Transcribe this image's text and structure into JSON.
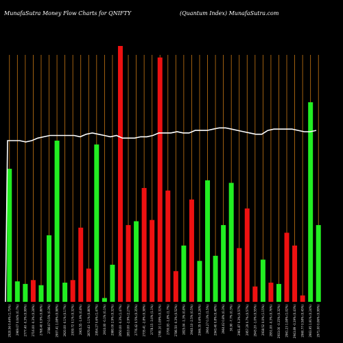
{
  "chart_data": {
    "type": "bar",
    "title_left": "MunafaSutra  Money Flow  Charts for QNIFTY",
    "title_right": "(Quantum Index) MunafaSutra.com",
    "ylim": [
      0,
      100
    ],
    "colors": {
      "up": "#22ee22",
      "down": "#ee1111",
      "line": "#ffffff",
      "grid": "#c87814",
      "background": "#000000"
    },
    "bars": [
      {
        "label": "2920.56 0.44% (1.75%)",
        "value": 52,
        "color": "up"
      },
      {
        "label": "2969.07 0.04% (0.7%)",
        "value": 8,
        "color": "up"
      },
      {
        "label": "2777.40 -0.3% (0.99%)",
        "value": 7,
        "color": "up"
      },
      {
        "label": "2716.00 -0.3% (0.28%)",
        "value": 8.5,
        "color": "down"
      },
      {
        "label": "2768.40 0.9% (0.86%)",
        "value": 6.5,
        "color": "up"
      },
      {
        "label": "2788.07 0.5% (0.3%)",
        "value": 26,
        "color": "up"
      },
      {
        "label": "2907.41 1.08% (0.98%)",
        "value": 63,
        "color": "up"
      },
      {
        "label": "2920.00 -0.1% (0.17%)",
        "value": 7.5,
        "color": "up"
      },
      {
        "label": "2939.72 0.1% (0.32%)",
        "value": 8.5,
        "color": "down"
      },
      {
        "label": "2905.55 -1.9% (0.8%)",
        "value": 29,
        "color": "down"
      },
      {
        "label": "2870.43 -1.1% (0.86%)",
        "value": 13,
        "color": "down"
      },
      {
        "label": "2954.27 0.6% (1.47%)",
        "value": 61.5,
        "color": "up"
      },
      {
        "label": "2910.00 -0.1% (0.1%)",
        "value": 1.5,
        "color": "up"
      },
      {
        "label": "2980.00 2.9% (0.32%)",
        "value": 14.5,
        "color": "up"
      },
      {
        "label": "2950.00 -0.3% (1.47%)",
        "value": 100,
        "color": "down"
      },
      {
        "label": "2810.00 -2.9% (2.27%)",
        "value": 30,
        "color": "down"
      },
      {
        "label": "2776.42 0.5% (0.35%)",
        "value": 31.5,
        "color": "up"
      },
      {
        "label": "2735.41 -2.8% (0.38%)",
        "value": 44.5,
        "color": "down"
      },
      {
        "label": "2778.15 -3.0% (1.1%)",
        "value": 32,
        "color": "down"
      },
      {
        "label": "2780.10 1.09% (0.31%)",
        "value": 95.5,
        "color": "down"
      },
      {
        "label": "2700.93 -1.8% (1.7%)",
        "value": 43.5,
        "color": "down"
      },
      {
        "label": "2786.50 -0.3% (0.52%)",
        "value": 12,
        "color": "down"
      },
      {
        "label": "2825.04 -1.3% (0.8%)",
        "value": 22,
        "color": "up"
      },
      {
        "label": "2940.10 -2.5% (0.5%)",
        "value": 40,
        "color": "down"
      },
      {
        "label": "2946.35 0.6% (0.26%)",
        "value": 16,
        "color": "up"
      },
      {
        "label": "2904.27 0.3% (1.5%)",
        "value": 47.5,
        "color": "up"
      },
      {
        "label": "2943.40 0.8% (0.48%)",
        "value": 18,
        "color": "up"
      },
      {
        "label": "2964.02 0.8% (0.3%)",
        "value": 30,
        "color": "up"
      },
      {
        "label": "30.90 -7.7% (0.3%)",
        "value": 46.5,
        "color": "up"
      },
      {
        "label": "2961.87 0.3% (0.57%)",
        "value": 21,
        "color": "down"
      },
      {
        "label": "2957.29 0.7% (0.57%)",
        "value": 36.5,
        "color": "down"
      },
      {
        "label": "2943.20 -1.0% (0.55%)",
        "value": 6,
        "color": "down"
      },
      {
        "label": "2938.52 0.0% (1.15%)",
        "value": 16.5,
        "color": "up"
      },
      {
        "label": "2951.00 -0.3% (0.76%)",
        "value": 7.5,
        "color": "down"
      },
      {
        "label": "2933.00 -0.15% (0.32%)",
        "value": 7,
        "color": "up"
      },
      {
        "label": "2961.23 1.08% (1.02%)",
        "value": 27,
        "color": "down"
      },
      {
        "label": "2943.89 -0.19% (0.43%)",
        "value": 22,
        "color": "down"
      },
      {
        "label": "2960.77 0.58% (0.45%)",
        "value": 2.5,
        "color": "down"
      },
      {
        "label": "2963.95 1.91% (0.24%)",
        "value": 78,
        "color": "up"
      },
      {
        "label": "2971.00 0.06% (0.99%)",
        "value": 30,
        "color": "up"
      }
    ],
    "line_values": [
      63,
      63,
      63,
      62.5,
      63,
      64,
      64.5,
      65,
      65,
      65,
      65,
      65,
      64.5,
      65.5,
      66,
      65.5,
      65,
      64.5,
      65,
      64,
      64,
      64,
      64.5,
      64.5,
      65,
      66,
      66,
      66,
      66.5,
      66,
      66,
      67,
      67,
      67,
      67.5,
      68,
      68,
      67.5,
      67,
      66.5,
      66,
      65.5,
      65.5,
      67,
      67.5,
      67.5,
      67.5,
      67.5,
      67,
      66.5,
      66.5,
      67
    ]
  }
}
